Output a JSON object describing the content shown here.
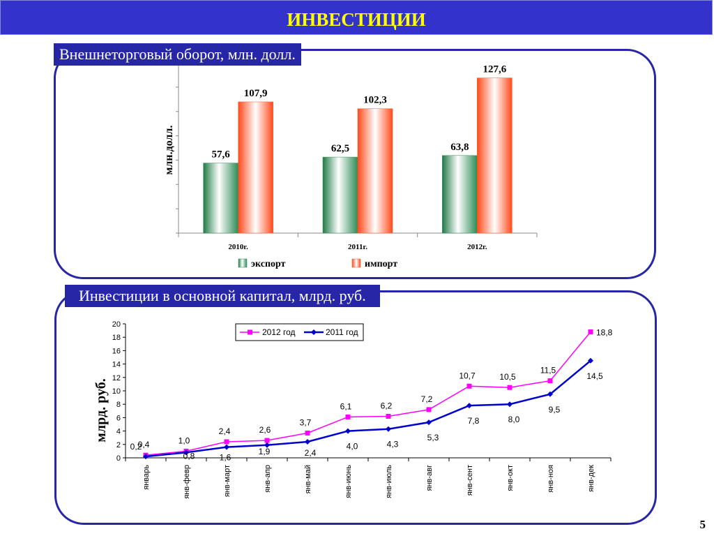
{
  "header": {
    "title": "ИНВЕСТИЦИИ"
  },
  "panel_top": {
    "caption": "Внешнеторговый оборот, млн. долл."
  },
  "panel_bottom": {
    "caption": "Инвестиции в основной капитал, млрд. руб."
  },
  "page_number": "5",
  "colors": {
    "header_bg": "#3333cc",
    "header_text": "#ffff00",
    "frame": "#2626a6",
    "export": "#2e8b57",
    "import": "#ff5a2a",
    "series_2012": "#ff00ff",
    "series_2011": "#0000cc"
  },
  "chart_data": [
    {
      "type": "bar",
      "title": "",
      "xlabel": "",
      "ylabel": "млн.долл.",
      "categories": [
        "2010г.",
        "2011г.",
        "2012г."
      ],
      "ylim": [
        0,
        140
      ],
      "grid": false,
      "legend_position": "bottom",
      "series": [
        {
          "name": "экспорт",
          "values": [
            57.6,
            62.5,
            63.8
          ],
          "labels": [
            "57,6",
            "62,5",
            "63,8"
          ]
        },
        {
          "name": "импорт",
          "values": [
            107.9,
            102.3,
            127.6
          ],
          "labels": [
            "107,9",
            "102,3",
            "127,6"
          ]
        }
      ]
    },
    {
      "type": "line",
      "title": "",
      "xlabel": "",
      "ylabel": "млрд. руб.",
      "categories": [
        "январь",
        "янв-февр",
        "янв-март",
        "янв-апр",
        "янв-май",
        "янв-июнь",
        "янв-июль",
        "янв-авг",
        "янв-сент",
        "янв-окт",
        "янв-ноя",
        "янв-дек"
      ],
      "ylim": [
        0,
        20
      ],
      "yticks": [
        "0",
        "2",
        "4",
        "6",
        "8",
        "10",
        "12",
        "14",
        "16",
        "18",
        "20"
      ],
      "grid": false,
      "legend_position": "top",
      "series": [
        {
          "name": "2012 год",
          "values": [
            0.4,
            1.0,
            2.4,
            2.6,
            3.7,
            6.1,
            6.2,
            7.2,
            10.7,
            10.5,
            11.5,
            18.8
          ],
          "labels": [
            "0,4",
            "1,0",
            "2,4",
            "2,6",
            "3,7",
            "6,1",
            "6,2",
            "7,2",
            "10,7",
            "10,5",
            "11,5",
            "18,8"
          ]
        },
        {
          "name": "2011 год",
          "values": [
            0.2,
            0.8,
            1.6,
            1.9,
            2.4,
            4.0,
            4.3,
            5.3,
            7.8,
            8.0,
            9.5,
            14.5
          ],
          "labels": [
            "0,2",
            "0,8",
            "1,6",
            "1,9",
            "2,4",
            "4,0",
            "4,3",
            "5,3",
            "7,8",
            "8,0",
            "9,5",
            "14,5"
          ]
        }
      ]
    }
  ]
}
